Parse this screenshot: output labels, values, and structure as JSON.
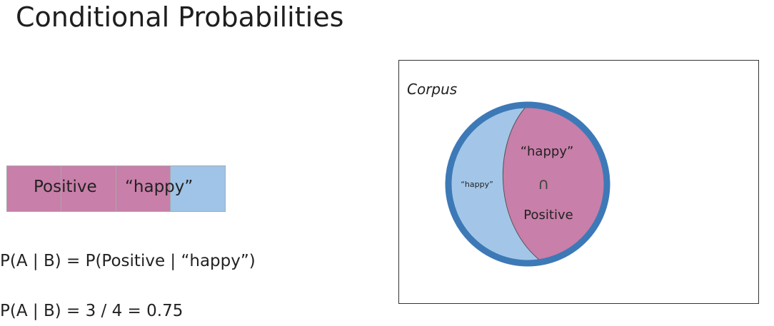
{
  "title": "Conditional Probabilities",
  "bar": {
    "label_positive": "Positive",
    "label_happy": "“happy”",
    "segments": [
      {
        "color": "#c87fa9"
      },
      {
        "color": "#c87fa9"
      },
      {
        "color": "#c87fa9"
      },
      {
        "color": "#9fc4e7"
      }
    ]
  },
  "formulas": {
    "line1": "P(A | B) = P(Positive | “happy”)",
    "line2": "P(A | B) = 3 / 4 = 0.75"
  },
  "venn": {
    "corpus_label": "Corpus",
    "happy_left_label": "“happy”",
    "happy_top_label": "“happy”",
    "intersection_symbol": "∩",
    "positive_label": "Positive",
    "colors": {
      "outer_ring": "#3d79b7",
      "happy_fill": "#a3c6e8",
      "positive_fill": "#c87fa9"
    }
  }
}
